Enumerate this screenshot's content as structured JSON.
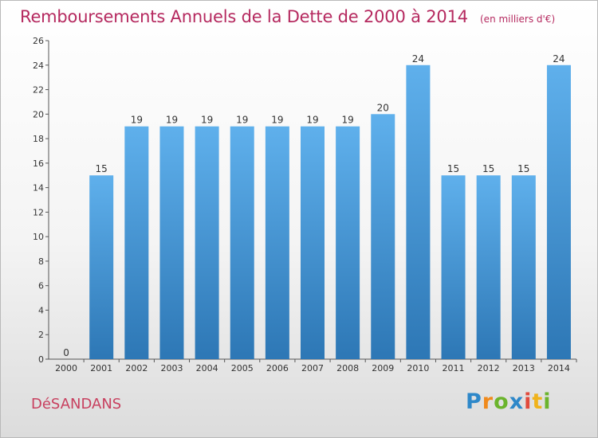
{
  "header": {
    "title": "Remboursements Annuels de la Dette de 2000 à 2014",
    "subtitle": "(en milliers d'€)"
  },
  "footer": {
    "commune": "DéSANDANS",
    "logo_letters": [
      "P",
      "r",
      "o",
      "x",
      "i",
      "t",
      "i"
    ]
  },
  "colors": {
    "title": "#b5295f",
    "commune": "#c8405f",
    "bar_top": "#5fb0ec",
    "bar_bottom": "#2d77b5",
    "logo": [
      "#2e88c9",
      "#f08a1c",
      "#6bb42c",
      "#2e88c9",
      "#e14a3c",
      "#f0b31c",
      "#6bb42c"
    ]
  },
  "chart_data": {
    "type": "bar",
    "title": "Remboursements Annuels de la Dette de 2000 à 2014",
    "subtitle": "(en milliers d'€)",
    "xlabel": "",
    "ylabel": "",
    "categories": [
      "2000",
      "2001",
      "2002",
      "2003",
      "2004",
      "2005",
      "2006",
      "2007",
      "2008",
      "2009",
      "2010",
      "2011",
      "2012",
      "2013",
      "2014"
    ],
    "values": [
      0,
      15,
      19,
      19,
      19,
      19,
      19,
      19,
      19,
      20,
      24,
      15,
      15,
      15,
      24
    ],
    "ylim": [
      0,
      26
    ],
    "yticks": [
      0,
      2,
      4,
      6,
      8,
      10,
      12,
      14,
      16,
      18,
      20,
      22,
      24,
      26
    ],
    "grid": false,
    "data_labels": true,
    "legend": "none"
  }
}
